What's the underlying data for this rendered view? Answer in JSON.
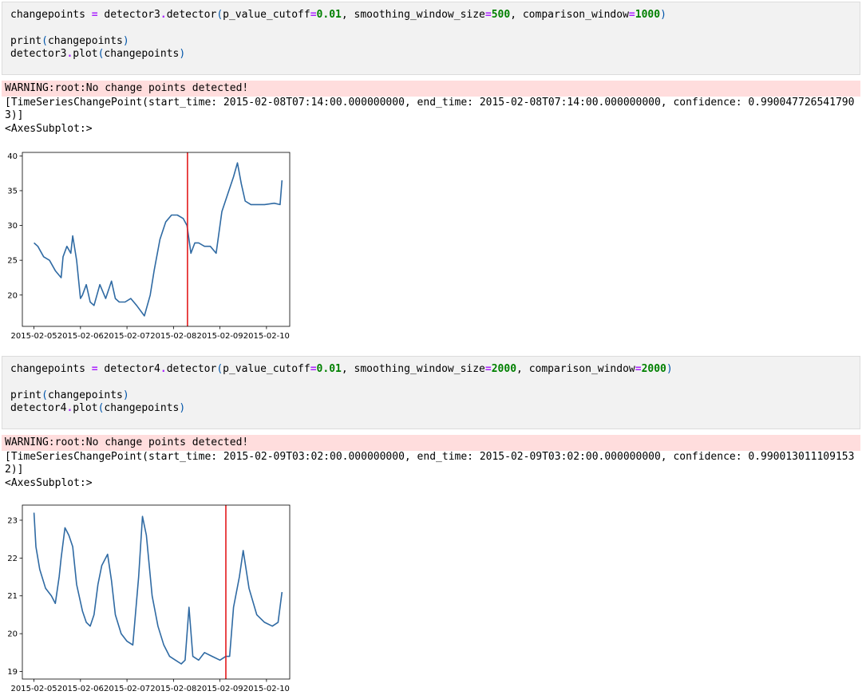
{
  "cells": [
    {
      "input": {
        "line1": {
          "var": "changepoints",
          "eq": "=",
          "call": "detector3",
          "dot": ".",
          "method": "detector",
          "arg1_name": "p_value_cutoff",
          "arg1_val": "0.01",
          "arg2_name": "smoothing_window_size",
          "arg2_val": "500",
          "arg3_name": "comparison_window",
          "arg3_val": "1000"
        },
        "line2": {
          "fn": "print",
          "arg": "changepoints"
        },
        "line3": {
          "obj": "detector3",
          "dot": ".",
          "method": "plot",
          "arg": "changepoints"
        }
      },
      "warning": "WARNING:root:No change points detected!",
      "output_line1": "[TimeSeriesChangePoint(start_time: 2015-02-08T07:14:00.000000000, end_time: 2015-02-08T07:14:00.000000000, confidence: 0.990047726541790",
      "output_line2": "3)]",
      "output_line3": "<AxesSubplot:>"
    },
    {
      "input": {
        "line1": {
          "var": "changepoints",
          "eq": "=",
          "call": "detector4",
          "dot": ".",
          "method": "detector",
          "arg1_name": "p_value_cutoff",
          "arg1_val": "0.01",
          "arg2_name": "smoothing_window_size",
          "arg2_val": "2000",
          "arg3_name": "comparison_window",
          "arg3_val": "2000"
        },
        "line2": {
          "fn": "print",
          "arg": "changepoints"
        },
        "line3": {
          "obj": "detector4",
          "dot": ".",
          "method": "plot",
          "arg": "changepoints"
        }
      },
      "warning": "WARNING:root:No change points detected!",
      "output_line1": "[TimeSeriesChangePoint(start_time: 2015-02-09T03:02:00.000000000, end_time: 2015-02-09T03:02:00.000000000, confidence: 0.990013011109153",
      "output_line2": "2)]",
      "output_line3": "<AxesSubplot:>"
    }
  ],
  "chart_data": [
    {
      "type": "line",
      "x_tick_labels": [
        "2015-02-05",
        "2015-02-06",
        "2015-02-07",
        "2015-02-08",
        "2015-02-09",
        "2015-02-10"
      ],
      "y_ticks": [
        20,
        25,
        30,
        35,
        40
      ],
      "xlim": [
        "2015-02-04T18:00",
        "2015-02-10T12:00"
      ],
      "ylim": [
        15.5,
        40.5
      ],
      "line_color": "#2f6aa3",
      "changepoint_color": "#e31a1c",
      "changepoint": "2015-02-08T07:14",
      "series": [
        {
          "x": [
            "2015-02-05T00:00",
            "2015-02-05T02:00",
            "2015-02-05T05:00",
            "2015-02-05T08:00",
            "2015-02-05T11:00",
            "2015-02-05T14:00",
            "2015-02-05T15:00",
            "2015-02-05T17:00",
            "2015-02-05T19:00",
            "2015-02-05T20:00",
            "2015-02-05T22:00",
            "2015-02-06T00:00",
            "2015-02-06T01:00",
            "2015-02-06T03:00",
            "2015-02-06T05:00",
            "2015-02-06T07:00",
            "2015-02-06T10:00",
            "2015-02-06T13:00",
            "2015-02-06T16:00",
            "2015-02-06T18:00",
            "2015-02-06T20:00",
            "2015-02-06T21:00",
            "2015-02-06T23:00",
            "2015-02-07T02:00",
            "2015-02-07T05:00",
            "2015-02-07T09:00",
            "2015-02-07T12:00",
            "2015-02-07T14:00",
            "2015-02-07T17:00",
            "2015-02-07T20:00",
            "2015-02-07T23:00",
            "2015-02-08T02:00",
            "2015-02-08T05:00",
            "2015-02-08T07:00",
            "2015-02-08T09:00",
            "2015-02-08T11:00",
            "2015-02-08T13:00",
            "2015-02-08T16:00",
            "2015-02-08T19:00",
            "2015-02-08T22:00",
            "2015-02-09T01:00",
            "2015-02-09T04:00",
            "2015-02-09T07:00",
            "2015-02-09T09:00",
            "2015-02-09T11:00",
            "2015-02-09T13:00",
            "2015-02-09T16:00",
            "2015-02-09T19:00",
            "2015-02-09T23:00",
            "2015-02-10T04:00",
            "2015-02-10T07:00",
            "2015-02-10T08:00"
          ],
          "values": [
            27.5,
            27,
            25.5,
            25,
            23.5,
            22.5,
            25.5,
            27,
            26,
            28.5,
            25,
            19.5,
            20,
            21.5,
            19,
            18.5,
            21.5,
            19.5,
            22,
            19.5,
            19,
            19,
            19,
            19.5,
            18.5,
            17,
            20,
            23.5,
            28,
            30.5,
            31.5,
            31.5,
            31,
            30,
            26,
            27.5,
            27.5,
            27,
            27,
            26,
            32,
            34.5,
            37,
            39,
            36,
            33.5,
            33,
            33,
            33,
            33.2,
            33,
            36.5
          ]
        }
      ]
    },
    {
      "type": "line",
      "x_tick_labels": [
        "2015-02-05",
        "2015-02-06",
        "2015-02-07",
        "2015-02-08",
        "2015-02-09",
        "2015-02-10"
      ],
      "y_ticks": [
        19,
        20,
        21,
        22,
        23
      ],
      "xlim": [
        "2015-02-04T18:00",
        "2015-02-10T12:00"
      ],
      "ylim": [
        18.8,
        23.4
      ],
      "line_color": "#2f6aa3",
      "changepoint_color": "#e31a1c",
      "changepoint": "2015-02-09T03:02",
      "series": [
        {
          "x": [
            "2015-02-05T00:00",
            "2015-02-05T01:00",
            "2015-02-05T03:00",
            "2015-02-05T06:00",
            "2015-02-05T09:00",
            "2015-02-05T11:00",
            "2015-02-05T13:00",
            "2015-02-05T14:00",
            "2015-02-05T16:00",
            "2015-02-05T18:00",
            "2015-02-05T20:00",
            "2015-02-05T22:00",
            "2015-02-06T01:00",
            "2015-02-06T03:00",
            "2015-02-06T05:00",
            "2015-02-06T07:00",
            "2015-02-06T09:00",
            "2015-02-06T11:00",
            "2015-02-06T14:00",
            "2015-02-06T16:00",
            "2015-02-06T18:00",
            "2015-02-06T21:00",
            "2015-02-07T00:00",
            "2015-02-07T03:00",
            "2015-02-07T06:00",
            "2015-02-07T08:00",
            "2015-02-07T10:00",
            "2015-02-07T13:00",
            "2015-02-07T16:00",
            "2015-02-07T19:00",
            "2015-02-07T22:00",
            "2015-02-08T01:00",
            "2015-02-08T04:00",
            "2015-02-08T06:00",
            "2015-02-08T08:00",
            "2015-02-08T10:00",
            "2015-02-08T13:00",
            "2015-02-08T16:00",
            "2015-02-08T20:00",
            "2015-02-09T00:00",
            "2015-02-09T03:00",
            "2015-02-09T05:00",
            "2015-02-09T07:00",
            "2015-02-09T10:00",
            "2015-02-09T12:00",
            "2015-02-09T15:00",
            "2015-02-09T19:00",
            "2015-02-09T23:00",
            "2015-02-10T03:00",
            "2015-02-10T06:00",
            "2015-02-10T08:00"
          ],
          "values": [
            23.2,
            22.3,
            21.7,
            21.2,
            21,
            20.8,
            21.5,
            22,
            22.8,
            22.6,
            22.3,
            21.3,
            20.6,
            20.3,
            20.2,
            20.5,
            21.3,
            21.8,
            22.1,
            21.4,
            20.5,
            20.0,
            19.8,
            19.7,
            21.5,
            23.1,
            22.6,
            21.0,
            20.2,
            19.7,
            19.4,
            19.3,
            19.2,
            19.3,
            20.7,
            19.4,
            19.3,
            19.5,
            19.4,
            19.3,
            19.4,
            19.4,
            20.7,
            21.5,
            22.2,
            21.2,
            20.5,
            20.3,
            20.2,
            20.3,
            21.1
          ]
        }
      ]
    }
  ]
}
